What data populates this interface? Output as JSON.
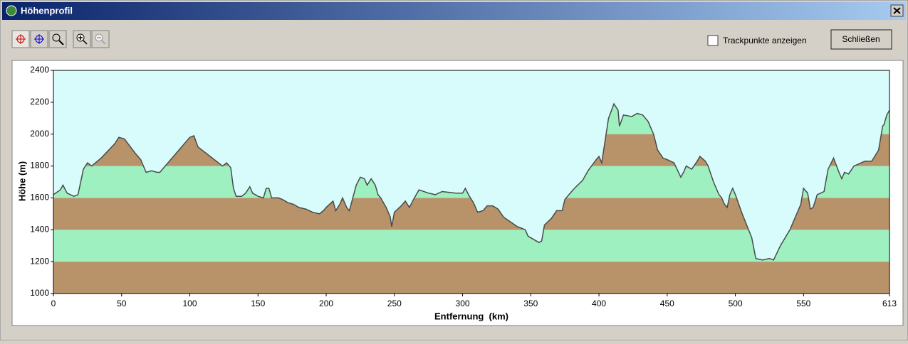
{
  "window": {
    "title": "Höhenprofil",
    "checkbox_label": "Trackpunkte anzeigen",
    "button_label": "Schließen"
  },
  "chart_data": {
    "type": "area",
    "xlabel": "Entfernung  (km)",
    "ylabel": "Höhe (m)",
    "x": [
      0,
      5,
      7,
      10,
      15,
      18,
      22,
      25,
      28,
      35,
      45,
      48,
      52,
      60,
      64,
      68,
      72,
      76,
      78,
      82,
      90,
      100,
      103,
      106,
      115,
      124,
      127,
      130,
      132,
      134,
      138,
      141,
      144,
      146,
      150,
      154,
      156,
      158,
      160,
      165,
      168,
      172,
      176,
      180,
      185,
      190,
      195,
      198,
      200,
      205,
      207,
      210,
      212,
      215,
      217,
      222,
      225,
      228,
      230,
      233,
      236,
      238,
      240,
      244,
      247,
      248,
      250,
      255,
      258,
      261,
      264,
      268,
      275,
      280,
      285,
      290,
      295,
      300,
      302,
      305,
      308,
      311,
      315,
      318,
      322,
      326,
      330,
      335,
      340,
      343,
      346,
      348,
      352,
      356,
      358,
      360,
      365,
      369,
      373,
      375,
      378,
      382,
      388,
      392,
      398,
      400,
      402,
      407,
      411,
      414,
      415,
      418,
      424,
      428,
      432,
      436,
      440,
      443,
      447,
      450,
      455,
      460,
      462,
      464,
      468,
      472,
      474,
      478,
      480,
      484,
      488,
      490,
      492,
      494,
      496,
      498,
      500,
      505,
      512,
      515,
      520,
      525,
      528,
      533,
      540,
      548,
      550,
      553,
      555,
      557,
      560,
      565,
      568,
      572,
      576,
      578,
      580,
      583,
      587,
      595,
      600,
      605,
      608,
      609,
      611,
      613
    ],
    "values": [
      1620,
      1650,
      1680,
      1630,
      1610,
      1620,
      1780,
      1820,
      1800,
      1850,
      1940,
      1980,
      1970,
      1880,
      1840,
      1760,
      1770,
      1760,
      1760,
      1800,
      1880,
      1980,
      1990,
      1920,
      1860,
      1800,
      1820,
      1790,
      1660,
      1610,
      1610,
      1630,
      1670,
      1630,
      1610,
      1600,
      1660,
      1660,
      1600,
      1600,
      1590,
      1570,
      1560,
      1540,
      1530,
      1510,
      1500,
      1520,
      1540,
      1580,
      1520,
      1560,
      1600,
      1540,
      1520,
      1680,
      1730,
      1720,
      1680,
      1720,
      1680,
      1620,
      1600,
      1540,
      1480,
      1420,
      1510,
      1550,
      1580,
      1540,
      1590,
      1650,
      1630,
      1620,
      1640,
      1635,
      1630,
      1630,
      1660,
      1610,
      1570,
      1510,
      1520,
      1550,
      1550,
      1530,
      1480,
      1450,
      1420,
      1410,
      1400,
      1360,
      1340,
      1320,
      1330,
      1430,
      1470,
      1520,
      1520,
      1590,
      1620,
      1660,
      1710,
      1770,
      1840,
      1860,
      1820,
      2100,
      2190,
      2150,
      2050,
      2120,
      2110,
      2130,
      2120,
      2080,
      2000,
      1900,
      1850,
      1840,
      1820,
      1730,
      1760,
      1800,
      1780,
      1830,
      1860,
      1830,
      1800,
      1700,
      1620,
      1600,
      1560,
      1540,
      1620,
      1660,
      1620,
      1500,
      1350,
      1220,
      1210,
      1220,
      1210,
      1300,
      1400,
      1560,
      1660,
      1630,
      1530,
      1540,
      1620,
      1640,
      1780,
      1850,
      1760,
      1720,
      1760,
      1750,
      1800,
      1830,
      1830,
      1900,
      2050,
      2060,
      2120,
      2150
    ],
    "xlim": [
      0,
      613
    ],
    "xticks": [
      0,
      50,
      100,
      150,
      200,
      250,
      300,
      350,
      400,
      450,
      500,
      550,
      613
    ],
    "ylim": [
      1000,
      2400
    ],
    "yticks": [
      1000,
      1200,
      1400,
      1600,
      1800,
      2000,
      2200,
      2400
    ],
    "line_color": "#4a4a4a",
    "band_colors": [
      "#b8936a",
      "#9ef0c0"
    ],
    "background": "#d8fbfb"
  }
}
